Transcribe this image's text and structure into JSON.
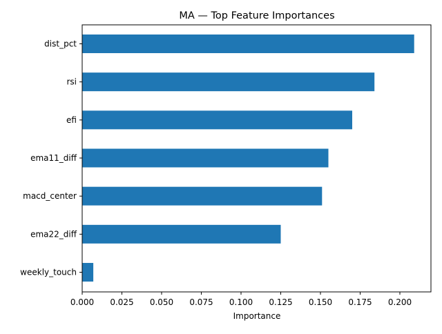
{
  "chart_data": {
    "type": "bar",
    "orientation": "horizontal",
    "title": "MA — Top Feature Importances",
    "xlabel": "Importance",
    "ylabel": "",
    "categories": [
      "dist_pct",
      "rsi",
      "efi",
      "ema11_diff",
      "macd_center",
      "ema22_diff",
      "weekly_touch"
    ],
    "values": [
      0.209,
      0.184,
      0.17,
      0.155,
      0.151,
      0.125,
      0.007
    ],
    "xlim": [
      0,
      0.22
    ],
    "xticks": [
      "0.000",
      "0.025",
      "0.050",
      "0.075",
      "0.100",
      "0.125",
      "0.150",
      "0.175",
      "0.200"
    ],
    "bar_color": "#1f77b4",
    "grid": false,
    "legend": "none"
  }
}
